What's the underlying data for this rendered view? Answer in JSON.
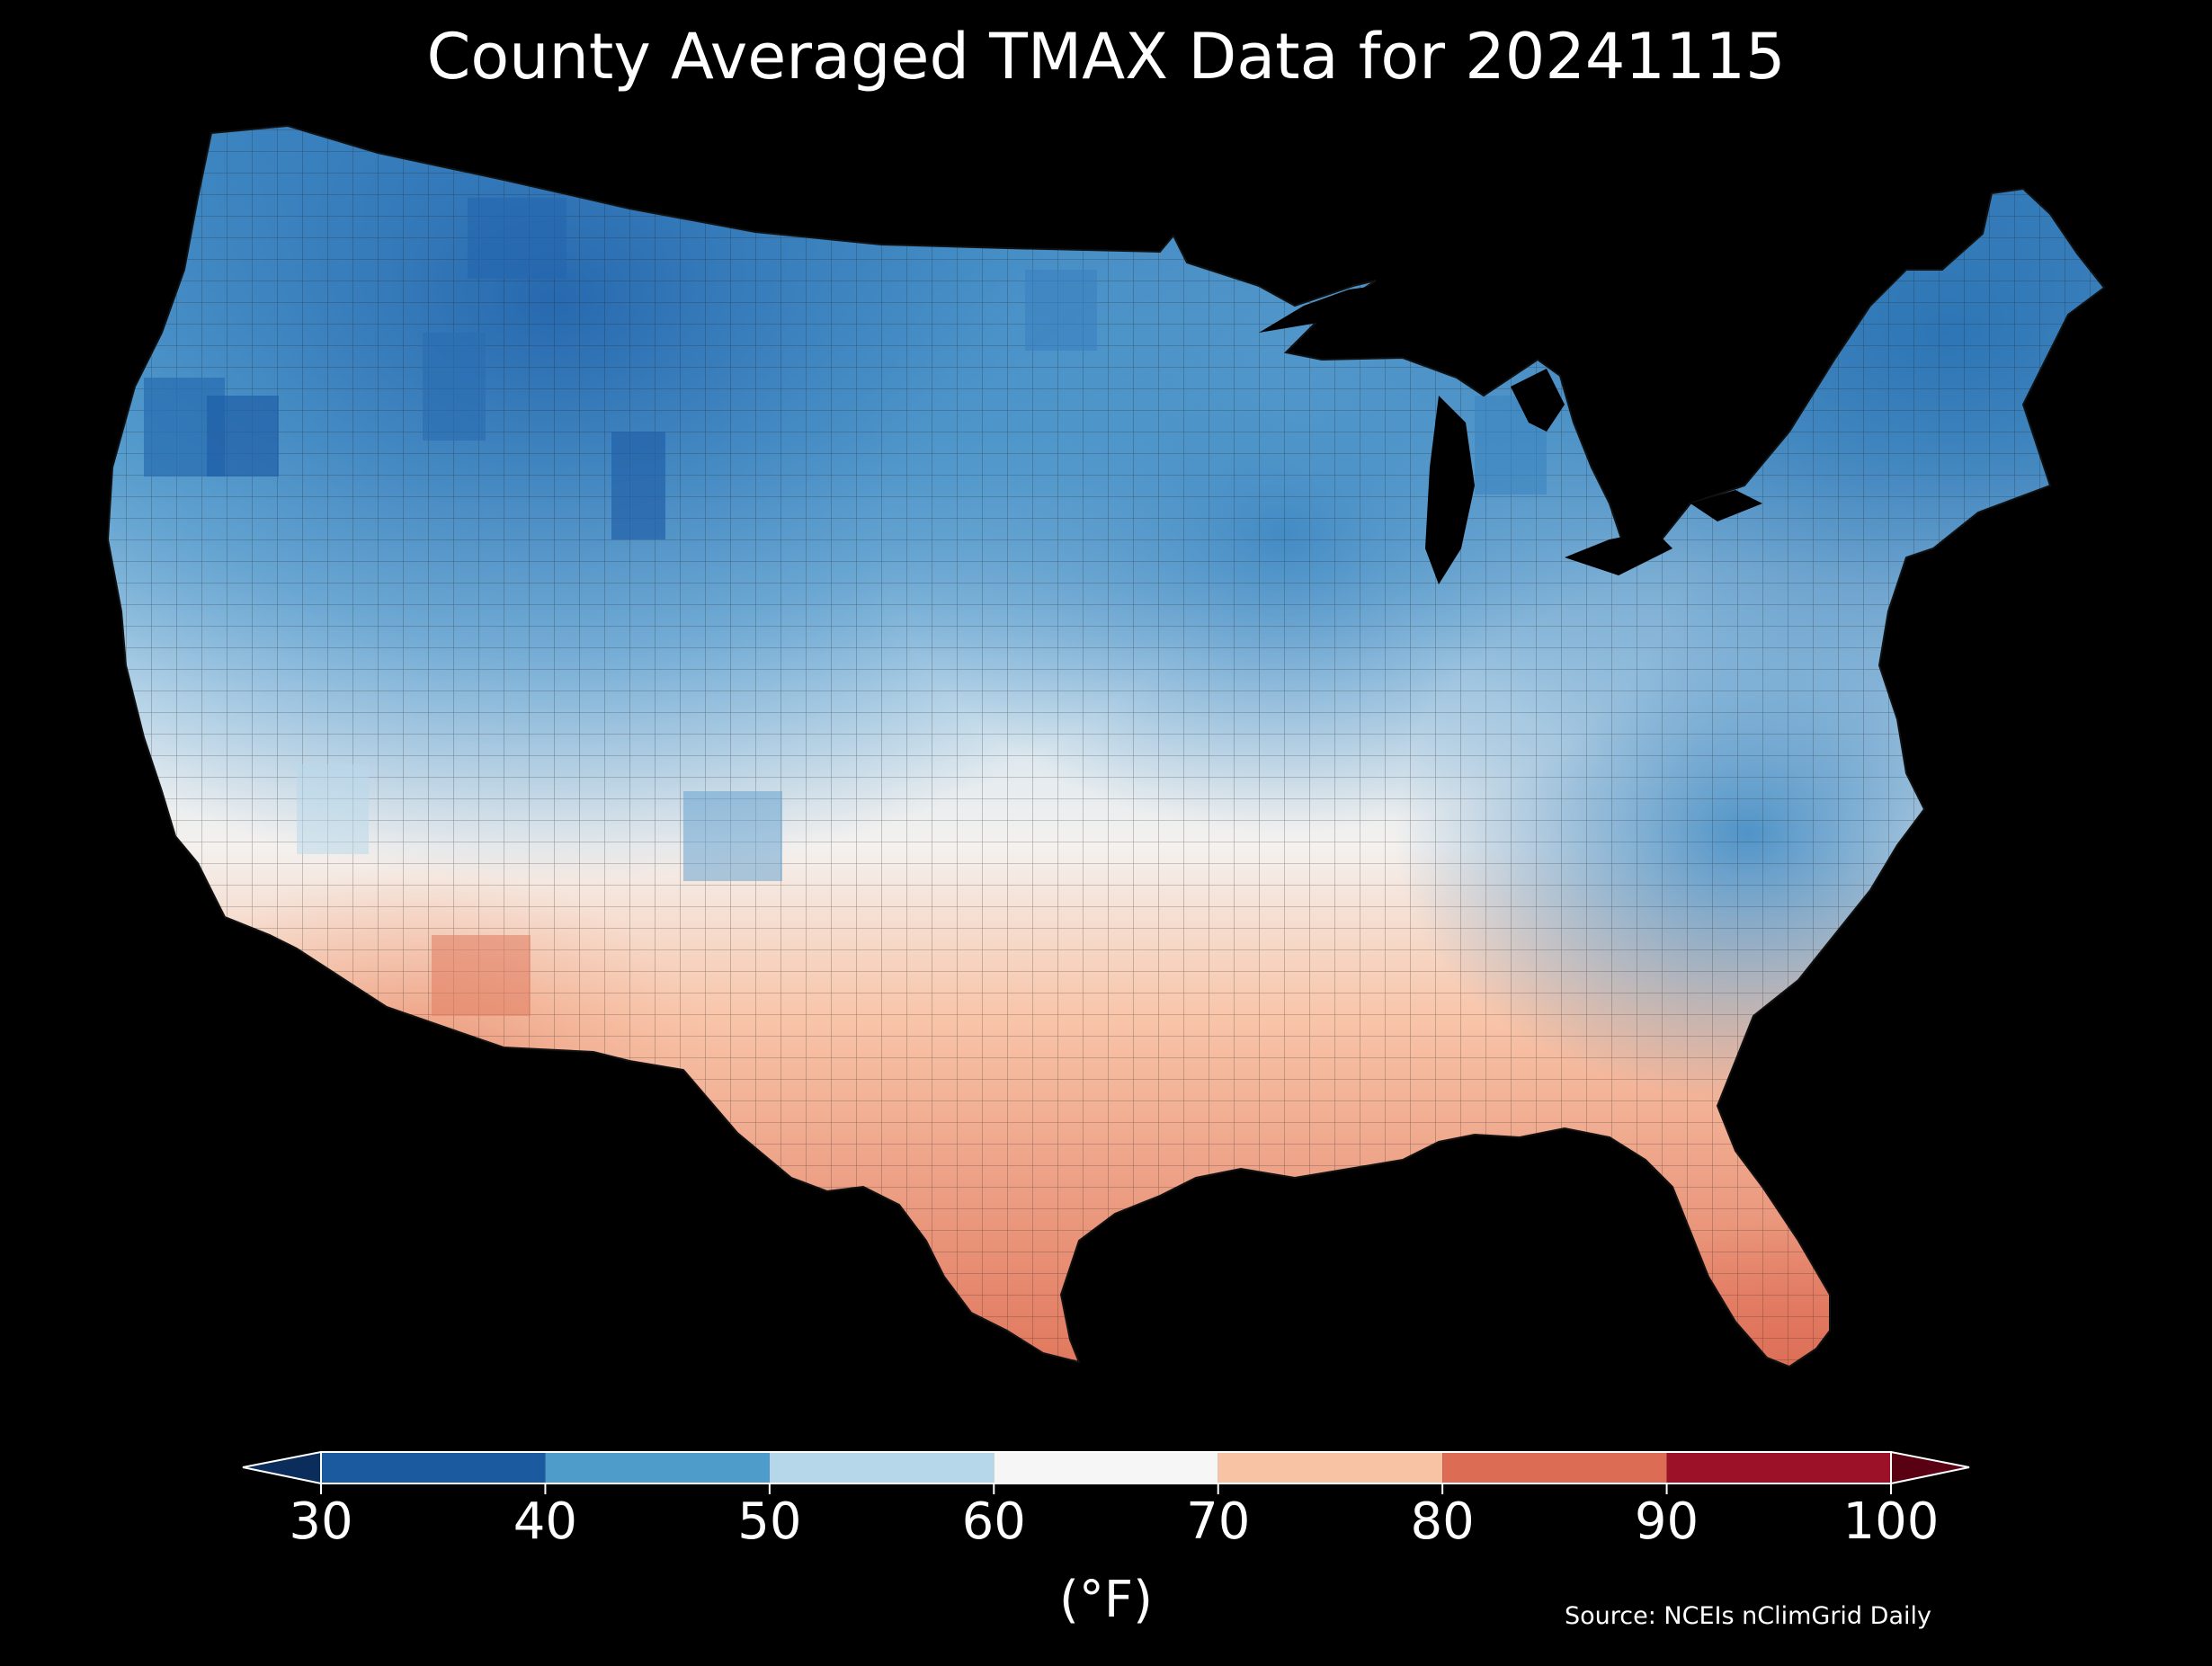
{
  "title": "County Averaged TMAX Data for 20241115",
  "source": "Source: NCEIs nClimGrid Daily",
  "colorbar": {
    "unit_label": "(°F)",
    "ticks": [
      "30",
      "40",
      "50",
      "60",
      "70",
      "80",
      "90",
      "100"
    ],
    "bins": [
      {
        "from": 30,
        "to": 40,
        "color": "#1b5a9e"
      },
      {
        "from": 40,
        "to": 50,
        "color": "#4e9cca"
      },
      {
        "from": 50,
        "to": 60,
        "color": "#b6d7ea"
      },
      {
        "from": 60,
        "to": 70,
        "color": "#f6f6f6"
      },
      {
        "from": 70,
        "to": 80,
        "color": "#f8c2a5"
      },
      {
        "from": 80,
        "to": 90,
        "color": "#dd6c55"
      },
      {
        "from": 90,
        "to": 100,
        "color": "#9c1127"
      }
    ],
    "under_color": "#0a2d5c",
    "over_color": "#5a0013",
    "extend": "both"
  },
  "map": {
    "region": "Contiguous United States",
    "unit": "county",
    "variable": "TMAX",
    "date": "20241115"
  },
  "colors": {
    "background": "#000000",
    "text": "#ffffff",
    "county_border": "#1a1a1a"
  }
}
